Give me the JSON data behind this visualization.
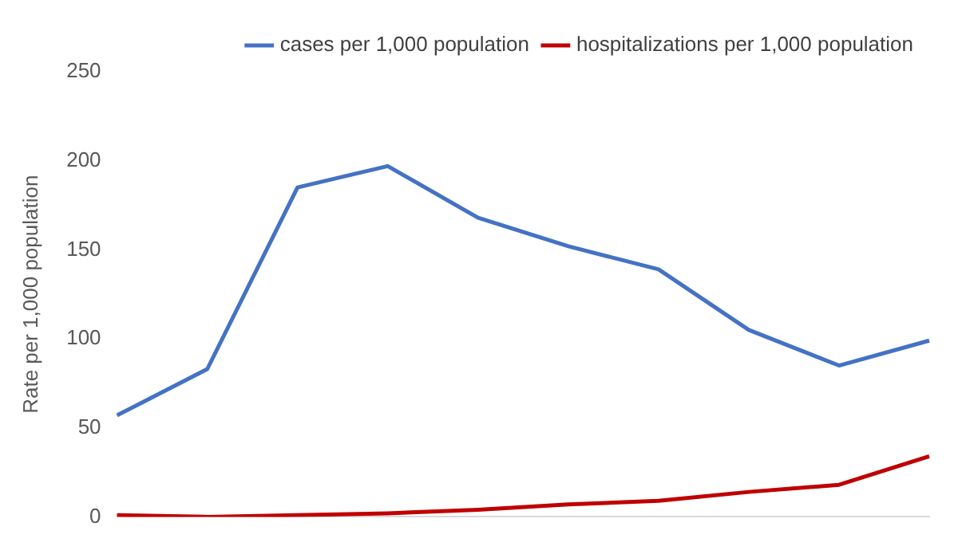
{
  "chart_data": {
    "type": "line",
    "ylabel": "Rate per 1,000 population",
    "categories": [
      null,
      null,
      null,
      null,
      null,
      null,
      null,
      null,
      null,
      null
    ],
    "series": [
      {
        "name": "cases per 1,000 population",
        "color": "#4472c4",
        "values": [
          57,
          83,
          185,
          197,
          168,
          152,
          139,
          105,
          85,
          99
        ]
      },
      {
        "name": "hospitalizations per 1,000 population",
        "color": "#c00000",
        "values": [
          1,
          0,
          1,
          2,
          4,
          7,
          9,
          14,
          18,
          34
        ]
      }
    ],
    "ylim": [
      0,
      250
    ],
    "yticks": [
      0,
      50,
      100,
      150,
      200,
      250
    ],
    "grid": false,
    "legend": "top right",
    "marker": "none"
  }
}
